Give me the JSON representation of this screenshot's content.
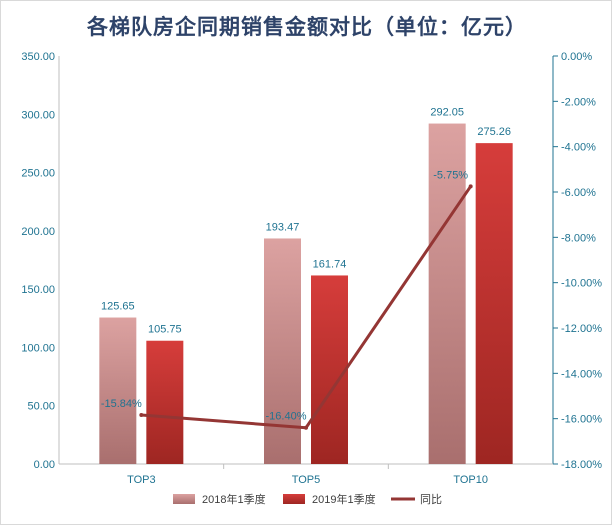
{
  "chart_data": {
    "type": "bar",
    "title": "各梯队房企同期销售金额对比（单位：亿元）",
    "categories": [
      "TOP3",
      "TOP5",
      "TOP10"
    ],
    "series": [
      {
        "name": "2018年1季度",
        "type": "bar",
        "axis": "left",
        "values": [
          125.65,
          193.47,
          292.05
        ],
        "labels": [
          "125.65",
          "193.47",
          "292.05"
        ],
        "color": "#d99694"
      },
      {
        "name": "2019年1季度",
        "type": "bar",
        "axis": "left",
        "values": [
          105.75,
          161.74,
          275.26
        ],
        "labels": [
          "105.75",
          "161.74",
          "275.26"
        ],
        "color": "#c0392b"
      },
      {
        "name": "同比",
        "type": "line",
        "axis": "right",
        "values": [
          -15.84,
          -16.4,
          -5.75
        ],
        "labels": [
          "-15.84%",
          "-16.40%",
          "-5.75%"
        ],
        "color": "#943634"
      }
    ],
    "y_left": {
      "lim": [
        0,
        350
      ],
      "ticks": [
        "0.00",
        "50.00",
        "100.00",
        "150.00",
        "200.00",
        "250.00",
        "300.00",
        "350.00"
      ]
    },
    "y_right": {
      "lim": [
        -18,
        0
      ],
      "ticks": [
        "0.00%",
        "-2.00%",
        "-4.00%",
        "-6.00%",
        "-8.00%",
        "-10.00%",
        "-12.00%",
        "-14.00%",
        "-16.00%",
        "-18.00%"
      ]
    },
    "grid": false,
    "legend": "bottom",
    "axis_color": "#1f7391"
  }
}
